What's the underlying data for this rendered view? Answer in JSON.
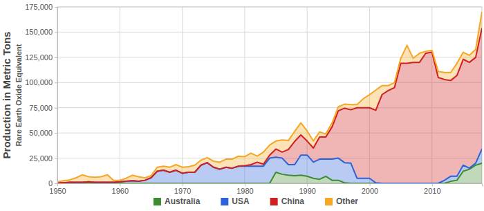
{
  "chart_data": {
    "type": "area",
    "stacked": true,
    "grid": true,
    "legend": "bottom",
    "y_label": [
      "Production in Metric Tons",
      "Rare Earth Oxide Equivalent"
    ],
    "x": [
      1950,
      1951,
      1952,
      1953,
      1954,
      1955,
      1956,
      1957,
      1958,
      1959,
      1960,
      1961,
      1962,
      1963,
      1964,
      1965,
      1966,
      1967,
      1968,
      1969,
      1970,
      1971,
      1972,
      1973,
      1974,
      1975,
      1976,
      1977,
      1978,
      1979,
      1980,
      1981,
      1982,
      1983,
      1984,
      1985,
      1986,
      1987,
      1988,
      1989,
      1990,
      1991,
      1992,
      1993,
      1994,
      1995,
      1996,
      1997,
      1998,
      1999,
      2000,
      2001,
      2002,
      2003,
      2004,
      2005,
      2006,
      2007,
      2008,
      2009,
      2010,
      2011,
      2012,
      2013,
      2014,
      2015,
      2016,
      2017,
      2018
    ],
    "xlim": [
      1950,
      2018
    ],
    "xticks": [
      1950,
      1960,
      1970,
      1980,
      1990,
      2000,
      2010
    ],
    "ylim": [
      0,
      175000
    ],
    "yticks": [
      0,
      {
        "value": 25000,
        "label": "25,000"
      },
      {
        "value": 50000,
        "label": "50,000"
      },
      {
        "value": 75000,
        "label": "75,000"
      },
      {
        "value": 100000,
        "label": "100,000"
      },
      {
        "value": 125000,
        "label": "125,000"
      },
      {
        "value": 150000,
        "label": "150,000"
      },
      {
        "value": 175000,
        "label": "175,000"
      }
    ],
    "series": [
      {
        "name": "Australia",
        "color": "#3c8d2f",
        "values": [
          0,
          0,
          0,
          0,
          0,
          0,
          0,
          0,
          0,
          0,
          0,
          0,
          0,
          0,
          0,
          0,
          0,
          0,
          0,
          0,
          0,
          0,
          0,
          0,
          0,
          0,
          0,
          0,
          0,
          0,
          0,
          0,
          0,
          0,
          0,
          11000,
          9000,
          8000,
          7500,
          8000,
          7000,
          5000,
          4000,
          7000,
          3000,
          3000,
          500,
          0,
          0,
          0,
          0,
          0,
          0,
          0,
          0,
          0,
          0,
          0,
          0,
          0,
          0,
          0,
          0,
          2000,
          3000,
          12000,
          14000,
          18000,
          20000
        ]
      },
      {
        "name": "USA",
        "color": "#2b62d9",
        "values": [
          500,
          500,
          1000,
          1000,
          1000,
          1500,
          1000,
          1000,
          1000,
          1000,
          1500,
          2000,
          2500,
          2000,
          3000,
          5500,
          12000,
          13000,
          11000,
          13000,
          10000,
          11000,
          11000,
          18000,
          20500,
          16000,
          14000,
          16000,
          15000,
          17000,
          17000,
          17000,
          17000,
          17000,
          25000,
          15000,
          16000,
          10500,
          11000,
          20000,
          21000,
          16000,
          20000,
          17000,
          21000,
          22000,
          20000,
          20000,
          5000,
          5000,
          5000,
          500,
          0,
          0,
          0,
          0,
          0,
          0,
          0,
          0,
          0,
          0,
          3000,
          5000,
          4000,
          6000,
          1000,
          2000,
          14000
        ]
      },
      {
        "name": "China",
        "color": "#d11f1f",
        "values": [
          0,
          0,
          0,
          0,
          0,
          0,
          0,
          0,
          0,
          0,
          0,
          0,
          0,
          0,
          0,
          0,
          0,
          0,
          0,
          0,
          0,
          0,
          0,
          0,
          0,
          0,
          0,
          0,
          0,
          0,
          500,
          1500,
          4000,
          2000,
          3000,
          8000,
          6000,
          15000,
          23000,
          20000,
          14000,
          14000,
          22000,
          22000,
          32000,
          47000,
          54000,
          53000,
          70000,
          70000,
          70000,
          72000,
          88000,
          92000,
          95000,
          119000,
          119000,
          120000,
          120000,
          129000,
          130000,
          105000,
          100000,
          95000,
          100000,
          105000,
          105000,
          105000,
          120000
        ]
      },
      {
        "name": "Other",
        "color": "#f5a623",
        "values": [
          1000,
          2000,
          2500,
          4500,
          7500,
          5000,
          5000,
          5500,
          7500,
          2000,
          1500,
          3000,
          5500,
          4500,
          2500,
          2000,
          4000,
          4000,
          5000,
          5500,
          6000,
          5500,
          7000,
          5000,
          5000,
          6000,
          7000,
          8000,
          9000,
          10000,
          9000,
          11500,
          6000,
          12000,
          10000,
          8000,
          12000,
          9000,
          10000,
          12000,
          10000,
          7000,
          5000,
          3000,
          4000,
          4000,
          4000,
          5000,
          3000,
          9000,
          13000,
          20000,
          9000,
          5000,
          5000,
          5000,
          18000,
          4000,
          9000,
          2000,
          2000,
          6000,
          7000,
          8000,
          12000,
          7000,
          7000,
          8000,
          16000
        ]
      }
    ]
  }
}
